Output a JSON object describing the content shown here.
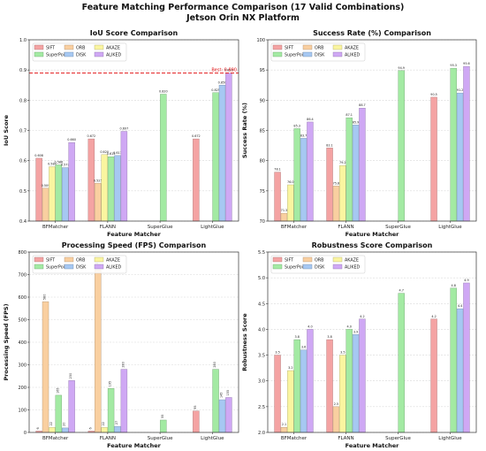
{
  "figure": {
    "title_line1": "Feature Matching Performance Comparison (17 Valid Combinations)",
    "title_line2": "Jetson Orin NX Platform"
  },
  "colors": {
    "SIFT": "#f4a3a3",
    "ORB": "#f9cfa0",
    "AKAZE": "#faf5a0",
    "SuperPoint": "#a3eaa3",
    "DISK": "#a6c8f2",
    "ALIKED": "#cfa8f4",
    "best_line": "#e31a1c"
  },
  "chart_data": [
    {
      "type": "bar",
      "title": "IoU Score Comparison",
      "xlabel": "Feature Matcher",
      "ylabel": "IoU Score",
      "categories": [
        "BFMatcher",
        "FLANN",
        "SuperGlue",
        "LightGlue"
      ],
      "ylim": [
        0.4,
        1.0
      ],
      "yticks": [
        "0.4",
        "0.5",
        "0.6",
        "0.7",
        "0.8",
        "0.9",
        "1.0"
      ],
      "grid": true,
      "legend_position": "top-left",
      "series": [
        {
          "name": "SIFT",
          "values": [
            0.608,
            0.672,
            null,
            0.672
          ],
          "labels": [
            "0.608",
            "0.672",
            null,
            "0.672"
          ]
        },
        {
          "name": "ORB",
          "values": [
            0.509,
            0.525,
            null,
            null
          ],
          "labels": [
            "0.509",
            "0.525",
            null,
            null
          ]
        },
        {
          "name": "AKAZE",
          "values": [
            0.58,
            0.62,
            null,
            null
          ],
          "labels": [
            "0.580",
            "0.620",
            null,
            null
          ]
        },
        {
          "name": "SuperPoint",
          "values": [
            0.586,
            0.613,
            0.82,
            0.825
          ],
          "labels": [
            "0.586",
            "0.613",
            "0.820",
            "0.825"
          ]
        },
        {
          "name": "DISK",
          "values": [
            0.577,
            0.617,
            null,
            0.85
          ],
          "labels": [
            "0.577",
            "0.617",
            null,
            "0.850"
          ]
        },
        {
          "name": "ALIKED",
          "values": [
            0.66,
            0.697,
            null,
            0.89
          ],
          "labels": [
            "0.660",
            "0.697",
            null,
            "0.890"
          ]
        }
      ],
      "reference_line": {
        "value": 0.89,
        "label": "Best: 0.890"
      }
    },
    {
      "type": "bar",
      "title": "Success Rate (%) Comparison",
      "xlabel": "Feature Matcher",
      "ylabel": "Success Rate (%)",
      "categories": [
        "BFMatcher",
        "FLANN",
        "SuperGlue",
        "LightGlue"
      ],
      "ylim": [
        70,
        100
      ],
      "yticks": [
        "70",
        "75",
        "80",
        "85",
        "90",
        "95",
        "100"
      ],
      "grid": true,
      "legend_position": "top-left",
      "series": [
        {
          "name": "SIFT",
          "values": [
            78.1,
            82.1,
            null,
            90.5
          ],
          "labels": [
            "78.1",
            "82.1",
            null,
            "90.5"
          ]
        },
        {
          "name": "ORB",
          "values": [
            71.3,
            75.8,
            null,
            null
          ],
          "labels": [
            "71.3",
            "75.8",
            null,
            null
          ]
        },
        {
          "name": "AKAZE",
          "values": [
            76.0,
            79.2,
            null,
            null
          ],
          "labels": [
            "76.0",
            "79.2",
            null,
            null
          ]
        },
        {
          "name": "SuperPoint",
          "values": [
            85.3,
            87.1,
            94.9,
            95.3
          ],
          "labels": [
            "85.3",
            "87.1",
            "94.9",
            "95.3"
          ]
        },
        {
          "name": "DISK",
          "values": [
            83.7,
            85.9,
            null,
            91.2
          ],
          "labels": [
            "83.7",
            "85.9",
            null,
            "91.2"
          ]
        },
        {
          "name": "ALIKED",
          "values": [
            86.4,
            88.7,
            null,
            95.6
          ],
          "labels": [
            "86.4",
            "88.7",
            null,
            "95.6"
          ]
        }
      ]
    },
    {
      "type": "bar",
      "title": "Processing Speed (FPS) Comparison",
      "xlabel": "Feature Matcher",
      "ylabel": "Processing Speed (FPS)",
      "categories": [
        "BFMatcher",
        "FLANN",
        "SuperGlue",
        "LightGlue"
      ],
      "ylim": [
        0,
        800
      ],
      "yticks": [
        "0",
        "100",
        "200",
        "300",
        "400",
        "500",
        "600",
        "700",
        "800"
      ],
      "grid": true,
      "legend_position": "top-left",
      "series": [
        {
          "name": "SIFT",
          "values": [
            6,
            6,
            null,
            95
          ],
          "labels": [
            "6",
            "6",
            null,
            "95"
          ]
        },
        {
          "name": "ORB",
          "values": [
            580,
            720,
            null,
            null
          ],
          "labels": [
            "580",
            "720",
            null,
            null
          ]
        },
        {
          "name": "AKAZE",
          "values": [
            22,
            22,
            null,
            null
          ],
          "labels": [
            "22",
            "22",
            null,
            null
          ]
        },
        {
          "name": "SuperPoint",
          "values": [
            165,
            195,
            55,
            280
          ],
          "labels": [
            "165",
            "195",
            "55",
            "280"
          ]
        },
        {
          "name": "DISK",
          "values": [
            20,
            27,
            null,
            145
          ],
          "labels": [
            "20",
            "27",
            null,
            "145"
          ]
        },
        {
          "name": "ALIKED",
          "values": [
            230,
            280,
            null,
            155
          ],
          "labels": [
            "230",
            "280",
            null,
            "155"
          ]
        }
      ]
    },
    {
      "type": "bar",
      "title": "Robustness Score Comparison",
      "xlabel": "Feature Matcher",
      "ylabel": "Robustness Score",
      "categories": [
        "BFMatcher",
        "FLANN",
        "SuperGlue",
        "LightGlue"
      ],
      "ylim": [
        2.0,
        5.5
      ],
      "yticks": [
        "2.0",
        "2.5",
        "3.0",
        "3.5",
        "4.0",
        "4.5",
        "5.0",
        "5.5"
      ],
      "grid": true,
      "legend_position": "top-left",
      "series": [
        {
          "name": "SIFT",
          "values": [
            3.5,
            3.8,
            null,
            4.2
          ],
          "labels": [
            "3.5",
            "3.8",
            null,
            "4.2"
          ]
        },
        {
          "name": "ORB",
          "values": [
            2.1,
            2.5,
            null,
            null
          ],
          "labels": [
            "2.1",
            "2.5",
            null,
            null
          ]
        },
        {
          "name": "AKAZE",
          "values": [
            3.2,
            3.5,
            null,
            null
          ],
          "labels": [
            "3.2",
            "3.5",
            null,
            null
          ]
        },
        {
          "name": "SuperPoint",
          "values": [
            3.8,
            4.0,
            4.7,
            4.8
          ],
          "labels": [
            "3.8",
            "4.0",
            "4.7",
            "4.8"
          ]
        },
        {
          "name": "DISK",
          "values": [
            3.6,
            3.9,
            null,
            4.4
          ],
          "labels": [
            "3.6",
            "3.9",
            null,
            "4.4"
          ]
        },
        {
          "name": "ALIKED",
          "values": [
            4.0,
            4.2,
            null,
            4.9
          ],
          "labels": [
            "4.0",
            "4.2",
            null,
            "4.9"
          ]
        }
      ]
    }
  ]
}
